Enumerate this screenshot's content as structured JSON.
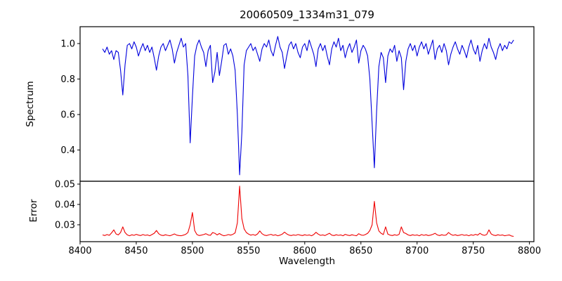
{
  "figure": {
    "title": "20060509_1334m31_079",
    "xlabel": "Wavelength",
    "ylabel_top": "Spectrum",
    "ylabel_bottom": "Error",
    "background_color": "#ffffff",
    "axis_color": "#000000"
  },
  "chart_data": [
    {
      "type": "line",
      "panel": "top",
      "series_name": "Spectrum",
      "title": "20060509_1334m31_079",
      "ylabel": "Spectrum",
      "line_color": "#0000dd",
      "grid": false,
      "legend": "none",
      "xlim": [
        8400,
        8804
      ],
      "ylim": [
        0.224,
        1.095
      ],
      "yticks": {
        "values": [
          0.4,
          0.6,
          0.8,
          1.0
        ],
        "labels": [
          "0.4",
          "0.6",
          "0.8",
          "1.0"
        ]
      },
      "xticks": {
        "values": [],
        "labels": []
      },
      "x_start": 8420,
      "x_step": 2,
      "values": [
        0.97,
        0.95,
        0.98,
        0.94,
        0.96,
        0.91,
        0.96,
        0.95,
        0.85,
        0.71,
        0.88,
        0.99,
        1.0,
        0.97,
        1.01,
        0.98,
        0.93,
        0.97,
        1.0,
        0.96,
        0.99,
        0.95,
        0.98,
        0.92,
        0.85,
        0.93,
        0.98,
        1.0,
        0.96,
        0.99,
        1.02,
        0.97,
        0.89,
        0.95,
        0.99,
        1.03,
        0.98,
        1.0,
        0.82,
        0.44,
        0.7,
        0.93,
        0.99,
        1.02,
        0.98,
        0.95,
        0.87,
        0.96,
        0.99,
        0.78,
        0.84,
        0.95,
        0.82,
        0.9,
        0.99,
        1.0,
        0.94,
        0.97,
        0.93,
        0.85,
        0.6,
        0.26,
        0.5,
        0.88,
        0.96,
        0.98,
        1.0,
        0.96,
        0.98,
        0.94,
        0.9,
        0.97,
        1.0,
        0.98,
        1.02,
        0.96,
        0.93,
        0.99,
        1.04,
        0.98,
        0.95,
        0.86,
        0.93,
        0.99,
        1.01,
        0.97,
        1.0,
        0.95,
        0.92,
        0.98,
        1.0,
        0.96,
        1.02,
        0.98,
        0.94,
        0.87,
        0.97,
        1.0,
        0.96,
        0.99,
        0.93,
        0.88,
        0.97,
        1.01,
        0.98,
        1.03,
        0.96,
        0.99,
        0.92,
        0.97,
        1.0,
        0.95,
        0.98,
        1.02,
        0.89,
        0.96,
        0.99,
        0.97,
        0.93,
        0.8,
        0.55,
        0.3,
        0.62,
        0.87,
        0.95,
        0.92,
        0.78,
        0.93,
        0.97,
        0.95,
        0.99,
        0.9,
        0.96,
        0.92,
        0.74,
        0.9,
        0.97,
        1.0,
        0.96,
        0.99,
        0.93,
        0.98,
        1.01,
        0.97,
        1.0,
        0.94,
        0.98,
        1.02,
        0.91,
        0.97,
        0.99,
        0.95,
        1.0,
        0.96,
        0.88,
        0.94,
        0.98,
        1.01,
        0.97,
        0.94,
        0.99,
        0.96,
        0.92,
        0.98,
        1.02,
        0.97,
        0.94,
        0.99,
        0.9,
        0.96,
        1.0,
        0.97,
        1.03,
        0.98,
        0.95,
        0.91,
        0.97,
        1.0,
        0.96,
        0.99,
        0.97,
        1.01,
        1.0,
        1.02
      ]
    },
    {
      "type": "line",
      "panel": "bottom",
      "series_name": "Error",
      "ylabel": "Error",
      "xlabel": "Wavelength",
      "line_color": "#ee0000",
      "grid": false,
      "legend": "none",
      "xlim": [
        8400,
        8804
      ],
      "ylim": [
        0.0217,
        0.0514
      ],
      "yticks": {
        "values": [
          0.03,
          0.04,
          0.05
        ],
        "labels": [
          "0.03",
          "0.04",
          "0.05"
        ]
      },
      "xticks": {
        "values": [
          8400,
          8450,
          8500,
          8550,
          8600,
          8650,
          8700,
          8750,
          8800
        ],
        "labels": [
          "8400",
          "8450",
          "8500",
          "8550",
          "8600",
          "8650",
          "8700",
          "8750",
          "8800"
        ]
      },
      "x_start": 8420,
      "x_step": 2,
      "values": [
        0.025,
        0.0247,
        0.0252,
        0.0248,
        0.026,
        0.0275,
        0.0255,
        0.025,
        0.0262,
        0.029,
        0.0262,
        0.025,
        0.0246,
        0.0251,
        0.0248,
        0.0253,
        0.0249,
        0.0247,
        0.0252,
        0.0248,
        0.025,
        0.0246,
        0.0252,
        0.0258,
        0.0272,
        0.0256,
        0.0249,
        0.0247,
        0.0251,
        0.0248,
        0.0246,
        0.025,
        0.0255,
        0.0249,
        0.0247,
        0.0246,
        0.0249,
        0.0253,
        0.0262,
        0.03,
        0.036,
        0.0272,
        0.0252,
        0.0247,
        0.0249,
        0.0252,
        0.0256,
        0.025,
        0.0248,
        0.0262,
        0.0258,
        0.025,
        0.0257,
        0.025,
        0.0246,
        0.0248,
        0.0252,
        0.0249,
        0.0253,
        0.026,
        0.031,
        0.049,
        0.033,
        0.028,
        0.0262,
        0.0254,
        0.0249,
        0.0252,
        0.0248,
        0.0255,
        0.027,
        0.0256,
        0.0249,
        0.0247,
        0.025,
        0.0253,
        0.0248,
        0.0251,
        0.0246,
        0.0249,
        0.0254,
        0.0264,
        0.0255,
        0.0249,
        0.0247,
        0.025,
        0.0248,
        0.0252,
        0.0249,
        0.0247,
        0.0251,
        0.0248,
        0.025,
        0.0246,
        0.0252,
        0.0263,
        0.0254,
        0.0248,
        0.025,
        0.0247,
        0.0253,
        0.0258,
        0.0249,
        0.0247,
        0.0251,
        0.0248,
        0.025,
        0.0246,
        0.0253,
        0.0249,
        0.0247,
        0.0251,
        0.0248,
        0.0246,
        0.0256,
        0.025,
        0.0248,
        0.0252,
        0.0258,
        0.0272,
        0.03,
        0.0415,
        0.031,
        0.027,
        0.0258,
        0.0252,
        0.029,
        0.0254,
        0.0249,
        0.0247,
        0.0251,
        0.0248,
        0.0253,
        0.029,
        0.0262,
        0.0257,
        0.025,
        0.0247,
        0.0251,
        0.0248,
        0.025,
        0.0246,
        0.0252,
        0.0248,
        0.0251,
        0.0247,
        0.0249,
        0.0253,
        0.0258,
        0.025,
        0.0247,
        0.0251,
        0.0248,
        0.025,
        0.0262,
        0.0253,
        0.0248,
        0.0251,
        0.0247,
        0.0249,
        0.0252,
        0.0248,
        0.025,
        0.0246,
        0.0251,
        0.0248,
        0.0253,
        0.0249,
        0.0258,
        0.0251,
        0.0248,
        0.0252,
        0.0275,
        0.0255,
        0.0249,
        0.0247,
        0.0251,
        0.0248,
        0.025,
        0.0246,
        0.0248,
        0.025,
        0.0245,
        0.0243
      ]
    }
  ]
}
